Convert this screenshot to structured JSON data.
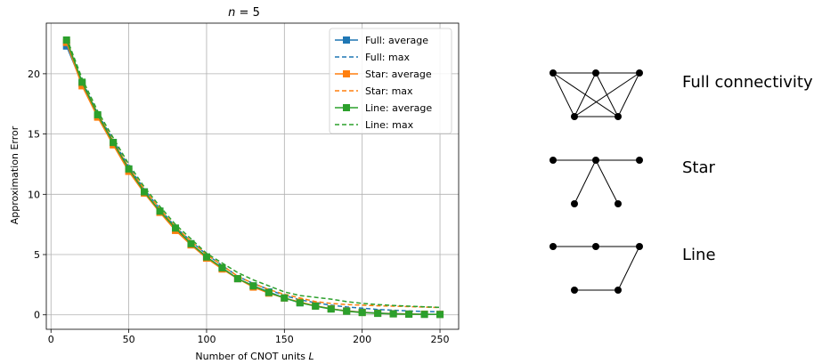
{
  "chart_data": {
    "type": "line",
    "title": "n = 5",
    "title_var": "n",
    "title_rest": " = 5",
    "xlabel": "Number of CNOT units ",
    "xlabel_var": "L",
    "ylabel": "Approximation Error",
    "xlim": [
      -3,
      262
    ],
    "ylim": [
      -1.2,
      24.2
    ],
    "xticks": [
      0,
      50,
      100,
      150,
      200,
      250
    ],
    "yticks": [
      0,
      5,
      10,
      15,
      20
    ],
    "grid": true,
    "legend_position": "upper right",
    "x": [
      10,
      20,
      30,
      40,
      50,
      60,
      70,
      80,
      90,
      100,
      110,
      120,
      130,
      140,
      150,
      160,
      170,
      180,
      190,
      200,
      210,
      220,
      230,
      240,
      250
    ],
    "series": [
      {
        "name": "Full: average",
        "style": "solid-square",
        "color": "#1f77b4",
        "values": [
          22.3,
          19.2,
          16.5,
          14.3,
          12.1,
          10.2,
          8.6,
          7.1,
          5.9,
          4.8,
          3.9,
          3.0,
          2.4,
          1.9,
          1.4,
          1.0,
          0.75,
          0.5,
          0.33,
          0.22,
          0.15,
          0.1,
          0.07,
          0.05,
          0.04
        ]
      },
      {
        "name": "Full: max",
        "style": "dashed",
        "color": "#1f77b4",
        "values": [
          22.5,
          19.4,
          16.7,
          14.5,
          12.3,
          10.4,
          8.8,
          7.3,
          6.1,
          5.0,
          4.1,
          3.2,
          2.6,
          2.1,
          1.6,
          1.25,
          1.0,
          0.8,
          0.65,
          0.55,
          0.45,
          0.38,
          0.32,
          0.28,
          0.25
        ]
      },
      {
        "name": "Star: average",
        "style": "solid-square",
        "color": "#ff7f0e",
        "values": [
          22.6,
          19.0,
          16.4,
          14.1,
          11.9,
          10.1,
          8.5,
          7.0,
          5.8,
          4.7,
          3.8,
          3.0,
          2.3,
          1.8,
          1.4,
          1.05,
          0.75,
          0.5,
          0.32,
          0.2,
          0.13,
          0.09,
          0.06,
          0.05,
          0.04
        ]
      },
      {
        "name": "Star: max",
        "style": "dashed",
        "color": "#ff7f0e",
        "values": [
          22.9,
          19.3,
          16.7,
          14.4,
          12.2,
          10.4,
          8.8,
          7.3,
          6.1,
          5.0,
          4.1,
          3.2,
          2.6,
          2.1,
          1.7,
          1.4,
          1.1,
          0.95,
          0.85,
          0.8,
          0.75,
          0.72,
          0.68,
          0.64,
          0.6
        ]
      },
      {
        "name": "Line: average",
        "style": "solid-square",
        "color": "#2ca02c",
        "values": [
          22.8,
          19.3,
          16.6,
          14.3,
          12.1,
          10.2,
          8.6,
          7.2,
          5.9,
          4.8,
          3.9,
          3.0,
          2.4,
          1.85,
          1.4,
          1.0,
          0.72,
          0.48,
          0.3,
          0.19,
          0.12,
          0.08,
          0.05,
          0.04,
          0.03
        ]
      },
      {
        "name": "Line: max",
        "style": "dashed",
        "color": "#2ca02c",
        "values": [
          23.0,
          19.6,
          16.9,
          14.7,
          12.5,
          10.6,
          9.0,
          7.5,
          6.3,
          5.1,
          4.3,
          3.5,
          2.9,
          2.4,
          1.9,
          1.6,
          1.45,
          1.3,
          1.1,
          0.95,
          0.85,
          0.78,
          0.72,
          0.67,
          0.62
        ]
      }
    ]
  },
  "graphs": [
    {
      "label": "Full connectivity",
      "type": "full"
    },
    {
      "label": "Star",
      "type": "star"
    },
    {
      "label": "Line",
      "type": "line"
    }
  ]
}
